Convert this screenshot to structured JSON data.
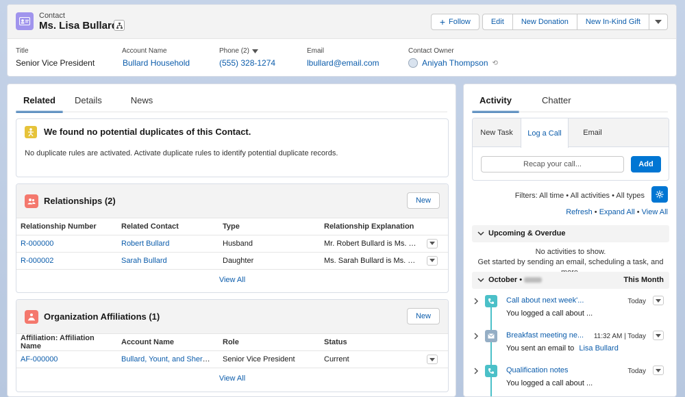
{
  "header": {
    "object_label": "Contact",
    "record_name": "Ms. Lisa Bullard",
    "buttons": {
      "follow": "Follow",
      "edit": "Edit",
      "new_donation": "New Donation",
      "new_in_kind": "New In-Kind Gift"
    },
    "fields": [
      {
        "label": "Title",
        "value": "Senior Vice President"
      },
      {
        "label": "Account Name",
        "value": "Bullard Household"
      },
      {
        "label": "Phone (2)",
        "value": "(555) 328-1274"
      },
      {
        "label": "Email",
        "value": "lbullard@email.com"
      },
      {
        "label": "Contact Owner",
        "value": "Aniyah Thompson"
      }
    ]
  },
  "left_tabs": [
    "Related",
    "Details",
    "News"
  ],
  "duplicates": {
    "title": "We found no potential duplicates of this Contact.",
    "text": "No duplicate rules are activated. Activate duplicate rules to identify potential duplicate records."
  },
  "relationships": {
    "title": "Relationships (2)",
    "new_label": "New",
    "columns": [
      "Relationship Number",
      "Related Contact",
      "Type",
      "Relationship Explanation"
    ],
    "rows": [
      [
        "R-000000",
        "Robert Bullard",
        "Husband",
        "Mr. Robert Bullard is Ms. Li..."
      ],
      [
        "R-000002",
        "Sarah Bullard",
        "Daughter",
        "Ms. Sarah Bullard is Ms. Lis..."
      ]
    ],
    "view_all": "View All"
  },
  "affiliations": {
    "title": "Organization Affiliations (1)",
    "new_label": "New",
    "columns": [
      "Affiliation: Affiliation Name",
      "Account Name",
      "Role",
      "Status"
    ],
    "rows": [
      [
        "AF-000000",
        "Bullard, Yount, and Sherma...",
        "Senior Vice President",
        "Current"
      ]
    ],
    "view_all": "View All"
  },
  "right_tabs": [
    "Activity",
    "Chatter"
  ],
  "composer": {
    "tabs": [
      "New Task",
      "Log a Call",
      "Email"
    ],
    "placeholder": "Recap your call...",
    "add_label": "Add"
  },
  "filters_text": "Filters: All time • All activities • All types",
  "links": {
    "refresh": "Refresh",
    "expand": "Expand All",
    "view_all": "View All"
  },
  "upcoming": {
    "title": "Upcoming & Overdue",
    "empty1": "No activities to show.",
    "empty2": "Get started by sending an email, scheduling a task, and more."
  },
  "october": {
    "title": "October •",
    "right": "This Month"
  },
  "timeline": [
    {
      "subject": "Call about next week'...",
      "date": "Today",
      "desc": "You logged a call about ...",
      "icon": "phone-icon",
      "color": "#4bc0c8"
    },
    {
      "subject": "Breakfast meeting ne...",
      "date": "11:32 AM | Today",
      "desc": "You sent an email to",
      "link": "Lisa Bullard",
      "icon": "email-icon",
      "color": "#95aec5"
    },
    {
      "subject": "Qualification notes",
      "date": "Today",
      "desc": "You logged a call about ...",
      "icon": "phone-icon",
      "color": "#4bc0c8"
    }
  ],
  "colors": {
    "brand": "#0176d3",
    "contact": "#a094ed",
    "relationships": "#f4786d",
    "affiliations": "#f4786d"
  }
}
